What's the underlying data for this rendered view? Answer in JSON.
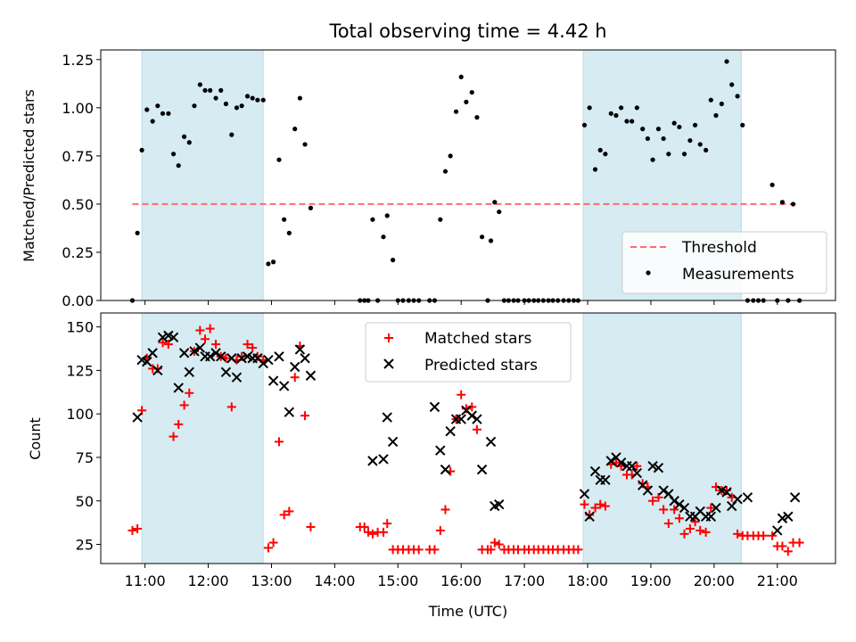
{
  "figure": {
    "title": "Total observing time = 4.42 h"
  },
  "chart_data": [
    {
      "type": "scatter",
      "panel": "top",
      "ylabel": "Matched/Predicted stars",
      "xlabel": "",
      "ylim": [
        0,
        1.3
      ],
      "xlim": [
        10.3,
        21.92
      ],
      "y_ticks": [
        "0.00",
        "0.25",
        "0.50",
        "0.75",
        "1.00",
        "1.25"
      ],
      "y_tick_values": [
        0,
        0.25,
        0.5,
        0.75,
        1.0,
        1.25
      ],
      "grid": false,
      "legend_position": "lower-right",
      "shaded_intervals_hours": [
        [
          10.95,
          12.87
        ],
        [
          17.93,
          20.43
        ]
      ],
      "shade_color": "#add8e6",
      "threshold": {
        "name": "Threshold",
        "value": 0.5,
        "x_range": [
          10.8,
          21.35
        ],
        "color": "#ff6b6b",
        "style": "dashed"
      },
      "series": [
        {
          "name": "Measurements",
          "color": "#000000",
          "marker": "dot",
          "x": [
            10.8,
            10.88,
            10.95,
            11.03,
            11.12,
            11.2,
            11.28,
            11.37,
            11.45,
            11.53,
            11.62,
            11.7,
            11.78,
            11.87,
            11.95,
            12.03,
            12.12,
            12.2,
            12.28,
            12.37,
            12.45,
            12.53,
            12.62,
            12.7,
            12.78,
            12.87,
            12.95,
            13.03,
            13.12,
            13.2,
            13.28,
            13.37,
            13.45,
            13.53,
            13.62,
            14.4,
            14.47,
            14.53,
            14.6,
            14.68,
            14.77,
            14.83,
            14.92,
            15.0,
            15.08,
            15.17,
            15.25,
            15.33,
            15.5,
            15.58,
            15.67,
            15.75,
            15.83,
            15.92,
            16.0,
            16.08,
            16.17,
            16.25,
            16.33,
            16.42,
            16.47,
            16.53,
            16.6,
            16.68,
            16.75,
            16.83,
            16.9,
            17.0,
            17.07,
            17.15,
            17.22,
            17.3,
            17.38,
            17.45,
            17.53,
            17.62,
            17.7,
            17.78,
            17.85,
            17.95,
            18.03,
            18.12,
            18.2,
            18.28,
            18.37,
            18.45,
            18.53,
            18.62,
            18.7,
            18.78,
            18.87,
            18.95,
            19.03,
            19.12,
            19.2,
            19.28,
            19.37,
            19.45,
            19.53,
            19.62,
            19.7,
            19.78,
            19.87,
            19.95,
            20.03,
            20.12,
            20.2,
            20.28,
            20.37,
            20.45,
            20.53,
            20.62,
            20.7,
            20.78,
            20.92,
            21.0,
            21.08,
            21.17,
            21.25,
            21.35
          ],
          "y": [
            0.0,
            0.35,
            0.78,
            0.99,
            0.93,
            1.01,
            0.97,
            0.97,
            0.76,
            0.7,
            0.85,
            0.82,
            1.01,
            1.12,
            1.09,
            1.09,
            1.05,
            1.09,
            1.02,
            0.86,
            1.0,
            1.01,
            1.06,
            1.05,
            1.04,
            1.04,
            0.19,
            0.2,
            0.73,
            0.42,
            0.35,
            0.89,
            1.05,
            0.81,
            0.48,
            0.0,
            0.0,
            0.0,
            0.42,
            0.0,
            0.33,
            0.44,
            0.21,
            0.0,
            0.0,
            0.0,
            0.0,
            0.0,
            0.0,
            0.0,
            0.42,
            0.67,
            0.75,
            0.98,
            1.16,
            1.03,
            1.08,
            0.95,
            0.33,
            0.0,
            0.31,
            0.51,
            0.46,
            0.0,
            0.0,
            0.0,
            0.0,
            0.0,
            0.0,
            0.0,
            0.0,
            0.0,
            0.0,
            0.0,
            0.0,
            0.0,
            0.0,
            0.0,
            0.0,
            0.91,
            1.0,
            0.68,
            0.78,
            0.76,
            0.97,
            0.96,
            1.0,
            0.93,
            0.93,
            1.0,
            0.89,
            0.84,
            0.73,
            0.89,
            0.84,
            0.76,
            0.92,
            0.9,
            0.76,
            0.83,
            0.91,
            0.81,
            0.78,
            1.04,
            0.96,
            1.02,
            1.24,
            1.12,
            1.06,
            0.91,
            0.0,
            0.0,
            0.0,
            0.0,
            0.6,
            0.0,
            0.51,
            0.0,
            0.5,
            0.0
          ]
        }
      ]
    },
    {
      "type": "scatter",
      "panel": "bottom",
      "ylabel": "Count",
      "xlabel": "Time (UTC)",
      "ylim": [
        14,
        158
      ],
      "xlim": [
        10.3,
        21.92
      ],
      "y_ticks": [
        "25",
        "50",
        "75",
        "100",
        "125",
        "150"
      ],
      "y_tick_values": [
        25,
        50,
        75,
        100,
        125,
        150
      ],
      "x_ticks": [
        "11:00",
        "12:00",
        "13:00",
        "14:00",
        "15:00",
        "16:00",
        "17:00",
        "18:00",
        "19:00",
        "20:00",
        "21:00"
      ],
      "x_tick_values": [
        11,
        12,
        13,
        14,
        15,
        16,
        17,
        18,
        19,
        20,
        21
      ],
      "grid": false,
      "legend_position": "upper-center",
      "shaded_intervals_hours": [
        [
          10.95,
          12.87
        ],
        [
          17.93,
          20.43
        ]
      ],
      "shade_color": "#add8e6",
      "series": [
        {
          "name": "Matched stars",
          "color": "#ff0000",
          "marker": "plus",
          "x": [
            10.8,
            10.88,
            10.95,
            11.03,
            11.12,
            11.2,
            11.28,
            11.37,
            11.45,
            11.53,
            11.62,
            11.7,
            11.78,
            11.87,
            11.95,
            12.03,
            12.12,
            12.2,
            12.28,
            12.37,
            12.45,
            12.53,
            12.62,
            12.7,
            12.78,
            12.87,
            12.95,
            13.03,
            13.12,
            13.2,
            13.28,
            13.37,
            13.45,
            13.53,
            13.62,
            14.4,
            14.47,
            14.53,
            14.6,
            14.68,
            14.77,
            14.83,
            14.92,
            15.0,
            15.08,
            15.17,
            15.25,
            15.33,
            15.5,
            15.58,
            15.67,
            15.75,
            15.83,
            15.92,
            16.0,
            16.08,
            16.17,
            16.25,
            16.33,
            16.42,
            16.47,
            16.53,
            16.6,
            16.68,
            16.75,
            16.83,
            16.9,
            17.0,
            17.07,
            17.15,
            17.22,
            17.3,
            17.38,
            17.45,
            17.53,
            17.62,
            17.7,
            17.78,
            17.85,
            17.95,
            18.03,
            18.12,
            18.2,
            18.28,
            18.37,
            18.45,
            18.53,
            18.62,
            18.7,
            18.78,
            18.87,
            18.95,
            19.03,
            19.12,
            19.2,
            19.28,
            19.37,
            19.45,
            19.53,
            19.62,
            19.7,
            19.78,
            19.87,
            19.95,
            20.03,
            20.12,
            20.2,
            20.28,
            20.37,
            20.45,
            20.53,
            20.62,
            20.7,
            20.78,
            20.92,
            21.0,
            21.08,
            21.17,
            21.25,
            21.35
          ],
          "y": [
            33,
            34,
            102,
            132,
            126,
            126,
            141,
            140,
            87,
            94,
            105,
            112,
            136,
            148,
            143,
            149,
            140,
            133,
            132,
            104,
            131,
            133,
            140,
            138,
            133,
            131,
            23,
            26,
            84,
            42,
            44,
            121,
            139,
            99,
            35,
            35,
            35,
            32,
            31,
            32,
            32,
            37,
            22,
            22,
            22,
            22,
            22,
            22,
            22,
            22,
            33,
            45,
            67,
            97,
            111,
            103,
            104,
            91,
            22,
            22,
            22,
            26,
            25,
            22,
            22,
            22,
            22,
            22,
            22,
            22,
            22,
            22,
            22,
            22,
            22,
            22,
            22,
            22,
            22,
            48,
            42,
            46,
            48,
            47,
            71,
            72,
            70,
            65,
            65,
            70,
            60,
            58,
            50,
            52,
            45,
            37,
            45,
            40,
            31,
            34,
            38,
            33,
            32,
            46,
            58,
            56,
            56,
            52,
            31,
            30,
            30,
            30,
            30,
            30,
            30,
            24,
            24,
            21,
            26,
            26
          ]
        },
        {
          "name": "Predicted stars",
          "color": "#000000",
          "marker": "x",
          "x": [
            10.88,
            10.95,
            11.03,
            11.12,
            11.2,
            11.28,
            11.37,
            11.45,
            11.53,
            11.62,
            11.7,
            11.78,
            11.87,
            11.95,
            12.03,
            12.12,
            12.2,
            12.28,
            12.37,
            12.45,
            12.53,
            12.62,
            12.7,
            12.78,
            12.87,
            12.95,
            13.03,
            13.12,
            13.2,
            13.28,
            13.37,
            13.45,
            13.53,
            13.62,
            14.6,
            14.77,
            14.83,
            14.92,
            15.58,
            15.67,
            15.75,
            15.83,
            15.92,
            16.0,
            16.08,
            16.17,
            16.25,
            16.33,
            16.47,
            16.53,
            16.6,
            17.95,
            18.03,
            18.12,
            18.2,
            18.28,
            18.37,
            18.45,
            18.53,
            18.62,
            18.7,
            18.78,
            18.87,
            18.95,
            19.03,
            19.12,
            19.2,
            19.28,
            19.37,
            19.45,
            19.53,
            19.62,
            19.7,
            19.78,
            19.87,
            19.95,
            20.03,
            20.12,
            20.2,
            20.28,
            20.37,
            20.53,
            21.0,
            21.08,
            21.17,
            21.28
          ],
          "y": [
            98,
            131,
            130,
            135,
            125,
            144,
            145,
            144,
            115,
            135,
            124,
            136,
            138,
            133,
            133,
            135,
            133,
            124,
            132,
            121,
            132,
            133,
            132,
            132,
            129,
            131,
            119,
            133,
            116,
            101,
            127,
            137,
            132,
            122,
            73,
            74,
            98,
            84,
            104,
            79,
            68,
            90,
            97,
            97,
            102,
            99,
            97,
            68,
            84,
            47,
            48,
            54,
            41,
            67,
            62,
            62,
            73,
            75,
            72,
            70,
            70,
            66,
            59,
            56,
            70,
            69,
            56,
            54,
            50,
            48,
            46,
            41,
            41,
            44,
            41,
            41,
            46,
            56,
            55,
            47,
            51,
            52,
            33,
            40,
            41,
            52
          ]
        }
      ]
    }
  ]
}
